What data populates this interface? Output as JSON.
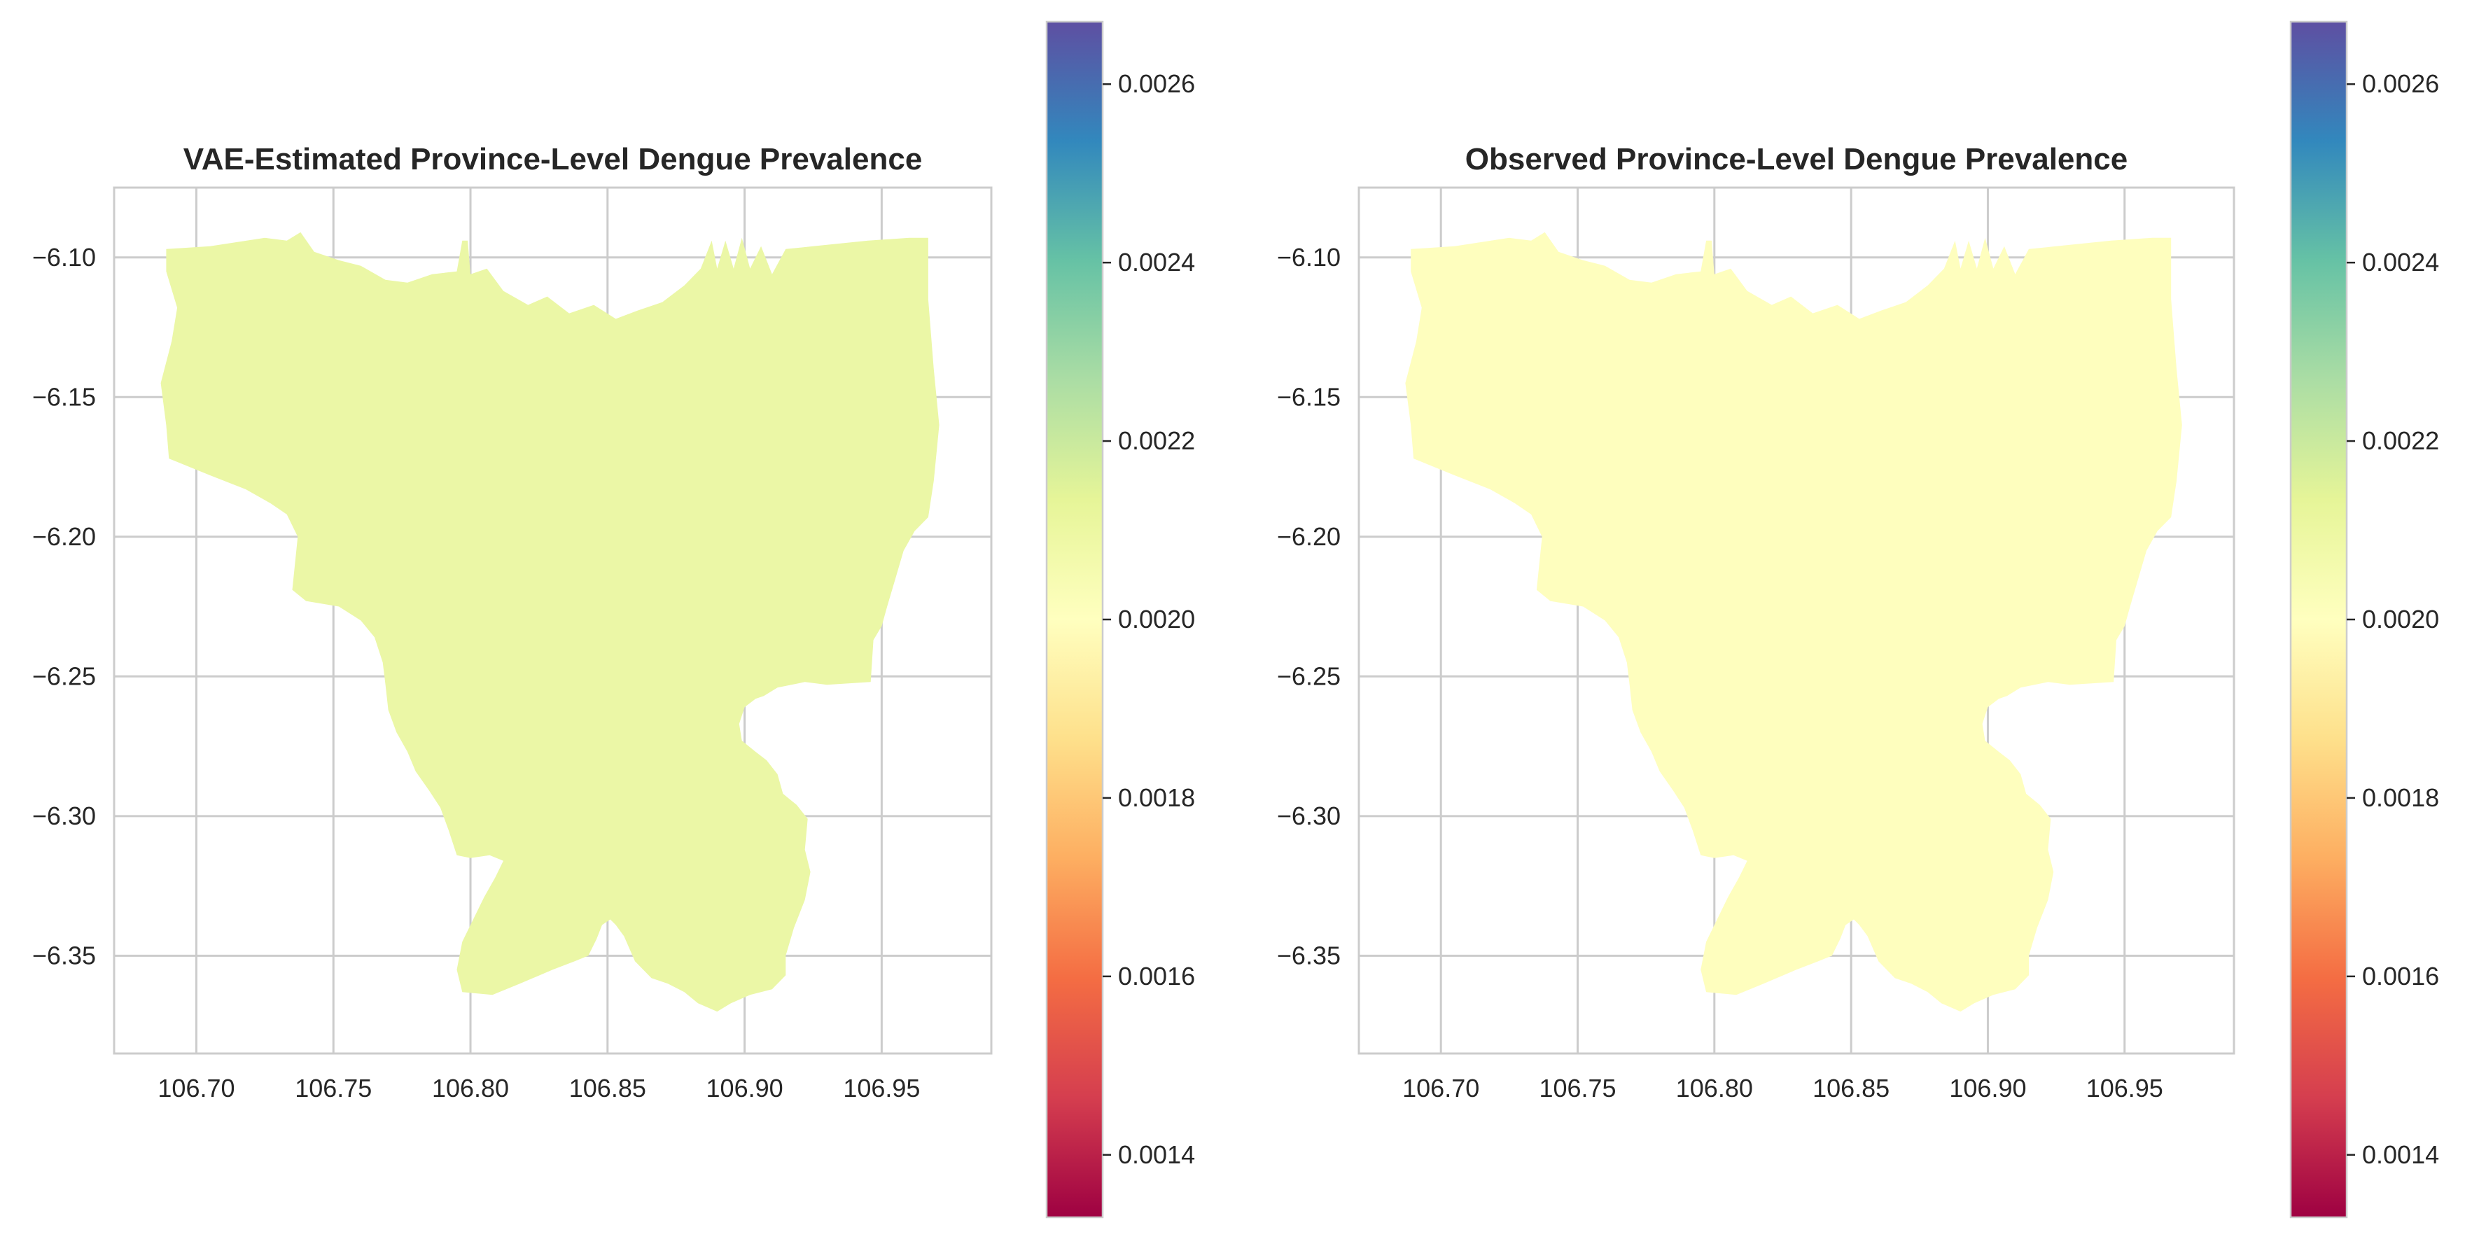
{
  "chart_data": [
    {
      "type": "choropleth-map",
      "title": "VAE-Estimated Province-Level Dengue Prevalence",
      "xlim": [
        106.67,
        106.99
      ],
      "ylim": [
        -6.385,
        -6.075
      ],
      "x_ticks": [
        106.7,
        106.75,
        106.8,
        106.85,
        106.9,
        106.95
      ],
      "x_tick_labels": [
        "106.70",
        "106.75",
        "106.80",
        "106.85",
        "106.90",
        "106.95"
      ],
      "y_ticks": [
        -6.1,
        -6.15,
        -6.2,
        -6.25,
        -6.3,
        -6.35
      ],
      "y_tick_labels": [
        "−6.10",
        "−6.15",
        "−6.20",
        "−6.25",
        "−6.30",
        "−6.35"
      ],
      "grid": true,
      "region_value": 0.00212,
      "region_color": "#ebf7a6",
      "colorbar": {
        "colormap": "Spectral",
        "range": [
          0.00133,
          0.00267
        ],
        "ticks": [
          0.0014,
          0.0016,
          0.0018,
          0.002,
          0.0022,
          0.0024,
          0.0026
        ],
        "tick_labels": [
          "0.0014",
          "0.0016",
          "0.0018",
          "0.0020",
          "0.0022",
          "0.0024",
          "0.0026"
        ]
      }
    },
    {
      "type": "choropleth-map",
      "title": "Observed Province-Level Dengue Prevalence",
      "xlim": [
        106.67,
        106.99
      ],
      "ylim": [
        -6.385,
        -6.075
      ],
      "x_ticks": [
        106.7,
        106.75,
        106.8,
        106.85,
        106.9,
        106.95
      ],
      "x_tick_labels": [
        "106.70",
        "106.75",
        "106.80",
        "106.85",
        "106.90",
        "106.95"
      ],
      "y_ticks": [
        -6.1,
        -6.15,
        -6.2,
        -6.25,
        -6.3,
        -6.35
      ],
      "y_tick_labels": [
        "−6.10",
        "−6.15",
        "−6.20",
        "−6.25",
        "−6.30",
        "−6.35"
      ],
      "grid": true,
      "region_value": 0.002,
      "region_color": "#fefebe",
      "colorbar": {
        "colormap": "Spectral",
        "range": [
          0.00133,
          0.00267
        ],
        "ticks": [
          0.0014,
          0.0016,
          0.0018,
          0.002,
          0.0022,
          0.0024,
          0.0026
        ],
        "tick_labels": [
          "0.0014",
          "0.0016",
          "0.0018",
          "0.0020",
          "0.0022",
          "0.0024",
          "0.0026"
        ]
      }
    }
  ],
  "colors": {
    "grid": "#cccccc",
    "text": "#262626",
    "spectral": [
      "#9e0142",
      "#d53e4f",
      "#f46d43",
      "#fdae61",
      "#fee08b",
      "#ffffbf",
      "#e6f598",
      "#abdda4",
      "#66c2a5",
      "#3288bd",
      "#5e4fa2"
    ]
  }
}
